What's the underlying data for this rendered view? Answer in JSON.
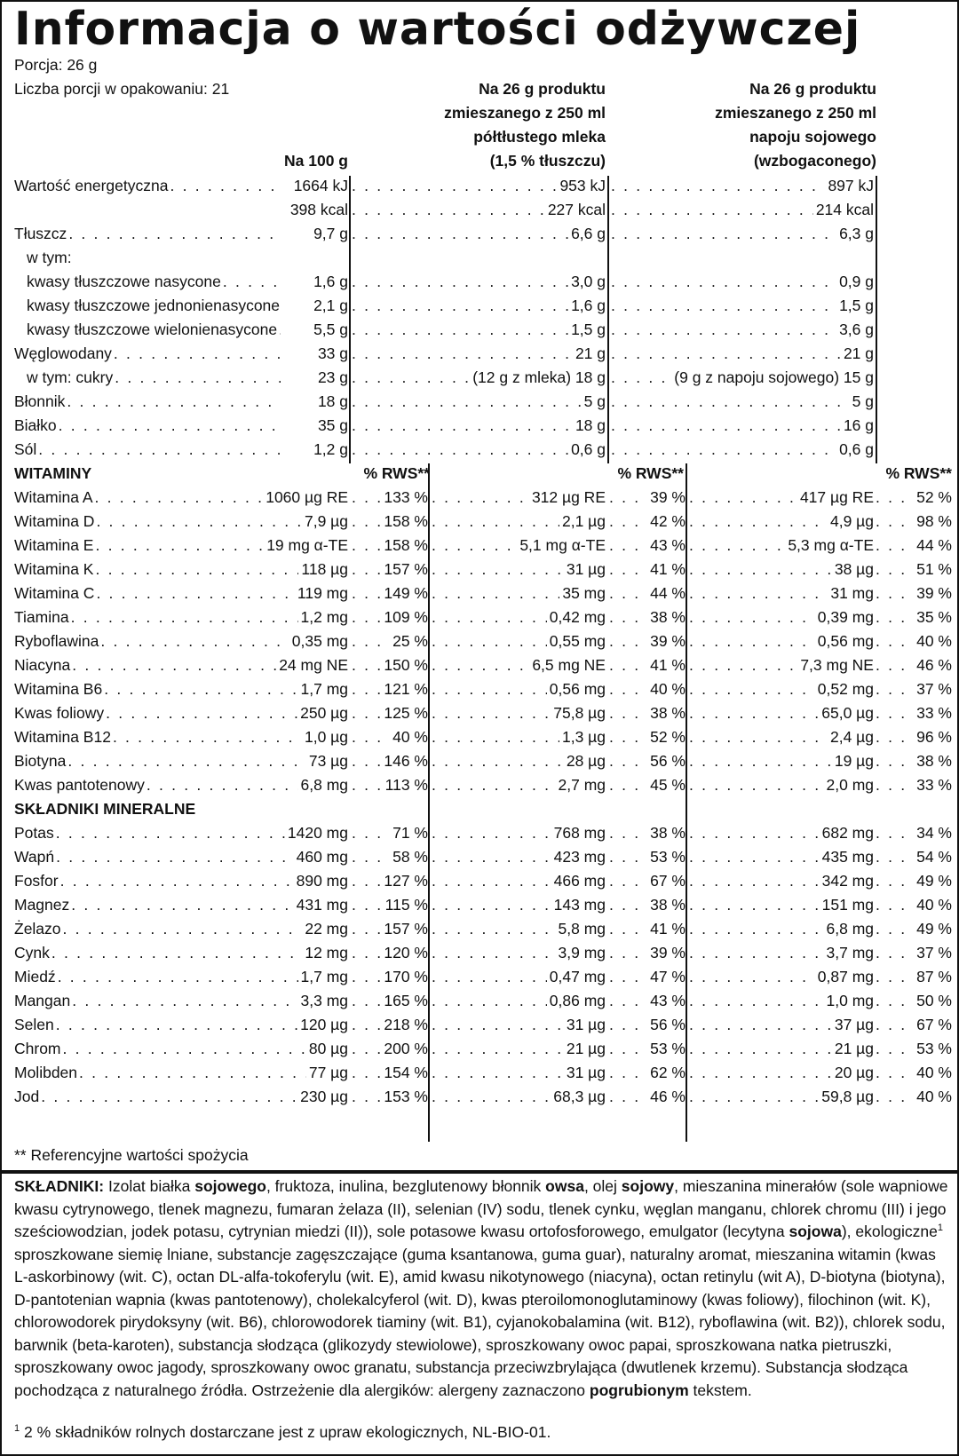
{
  "title": "Informacja o wartości odżywczej",
  "serving": "Porcja: 26 g",
  "servings_count": "Liczba porcji w opakowaniu: 21",
  "col_headers": {
    "per100": "Na 100 g",
    "milk": [
      "Na 26 g produktu",
      "zmieszanego z 250 ml",
      "półtłustego mleka",
      "(1,5 % tłuszczu)"
    ],
    "soy": [
      "Na 26 g produktu",
      "zmieszanego z 250 ml",
      "napoju sojowego",
      "(wzbogaconego)"
    ]
  },
  "nutrients": [
    {
      "label": "Wartość energetyczna",
      "indent": 0,
      "per100": "1664 kJ",
      "milk": "953 kJ",
      "soy": "897 kJ"
    },
    {
      "label": "",
      "indent": 0,
      "per100": "398 kcal",
      "milk": "227 kcal",
      "soy": "214 kcal"
    },
    {
      "label": "Tłuszcz",
      "indent": 0,
      "per100": "9,7 g",
      "milk": "6,6 g",
      "soy": "6,3 g"
    },
    {
      "label": "w tym:",
      "indent": 1,
      "per100": "",
      "milk": "",
      "soy": ""
    },
    {
      "label": "kwasy tłuszczowe nasycone",
      "indent": 1,
      "per100": "1,6 g",
      "milk": "3,0 g",
      "soy": "0,9 g"
    },
    {
      "label": "kwasy tłuszczowe jednonienasycone",
      "indent": 1,
      "per100": "2,1 g",
      "milk": "1,6 g",
      "soy": "1,5 g"
    },
    {
      "label": "kwasy tłuszczowe wielonienasycone",
      "indent": 1,
      "per100": "5,5 g",
      "milk": "1,5 g",
      "soy": "3,6 g"
    },
    {
      "label": "Węglowodany",
      "indent": 0,
      "per100": "33 g",
      "milk": "21 g",
      "soy": "21 g"
    },
    {
      "label": "w tym: cukry",
      "indent": 1,
      "per100": "23 g",
      "milk": "(12 g z mleka) 18 g",
      "soy": "(9 g z napoju sojowego) 15 g"
    },
    {
      "label": "Błonnik",
      "indent": 0,
      "per100": "18 g",
      "milk": "5 g",
      "soy": "5 g"
    },
    {
      "label": "Białko",
      "indent": 0,
      "per100": "35 g",
      "milk": "18 g",
      "soy": "16 g"
    },
    {
      "label": "Sól",
      "indent": 0,
      "per100": "1,2 g",
      "milk": "0,6 g",
      "soy": "0,6 g"
    }
  ],
  "vitamins_heading": "WITAMINY",
  "rws_header": "% RWS**",
  "vitamins": [
    {
      "label": "Witamina A",
      "v1": "1060 µg RE",
      "p1": "133 %",
      "v2": "312 µg RE",
      "p2": "39 %",
      "v3": "417 µg RE",
      "p3": "52 %"
    },
    {
      "label": "Witamina D",
      "v1": "7,9 µg",
      "p1": "158 %",
      "v2": "2,1 µg",
      "p2": "42 %",
      "v3": "4,9 µg",
      "p3": "98 %"
    },
    {
      "label": "Witamina E",
      "v1": "19 mg α-TE",
      "p1": "158 %",
      "v2": "5,1 mg α-TE",
      "p2": "43 %",
      "v3": "5,3 mg α-TE",
      "p3": "44 %"
    },
    {
      "label": "Witamina K",
      "v1": "118 µg",
      "p1": "157 %",
      "v2": "31 µg",
      "p2": "41 %",
      "v3": "38 µg",
      "p3": "51 %"
    },
    {
      "label": "Witamina C",
      "v1": "119 mg",
      "p1": "149 %",
      "v2": "35 mg",
      "p2": "44 %",
      "v3": "31 mg",
      "p3": "39 %"
    },
    {
      "label": "Tiamina",
      "v1": "1,2 mg",
      "p1": "109 %",
      "v2": "0,42 mg",
      "p2": "38 %",
      "v3": "0,39 mg",
      "p3": "35 %"
    },
    {
      "label": "Ryboflawina",
      "v1": "0,35 mg",
      "p1": "25 %",
      "v2": "0,55 mg",
      "p2": "39 %",
      "v3": "0,56 mg",
      "p3": "40 %"
    },
    {
      "label": "Niacyna",
      "v1": "24 mg NE",
      "p1": "150 %",
      "v2": "6,5 mg NE",
      "p2": "41 %",
      "v3": "7,3 mg NE",
      "p3": "46 %"
    },
    {
      "label": "Witamina B6",
      "v1": "1,7 mg",
      "p1": "121 %",
      "v2": "0,56 mg",
      "p2": "40 %",
      "v3": "0,52 mg",
      "p3": "37 %"
    },
    {
      "label": "Kwas foliowy",
      "v1": "250 µg",
      "p1": "125 %",
      "v2": "75,8 µg",
      "p2": "38 %",
      "v3": "65,0 µg",
      "p3": "33 %"
    },
    {
      "label": "Witamina B12",
      "v1": "1,0 µg",
      "p1": "40 %",
      "v2": "1,3 µg",
      "p2": "52 %",
      "v3": "2,4 µg",
      "p3": "96 %"
    },
    {
      "label": "Biotyna",
      "v1": "73 µg",
      "p1": "146 %",
      "v2": "28 µg",
      "p2": "56 %",
      "v3": "19 µg",
      "p3": "38 %"
    },
    {
      "label": "Kwas pantotenowy",
      "v1": "6,8 mg",
      "p1": "113 %",
      "v2": "2,7 mg",
      "p2": "45 %",
      "v3": "2,0 mg",
      "p3": "33 %"
    }
  ],
  "minerals_heading": "SKŁADNIKI MINERALNE",
  "minerals": [
    {
      "label": "Potas",
      "v1": "1420 mg",
      "p1": "71 %",
      "v2": "768 mg",
      "p2": "38 %",
      "v3": "682 mg",
      "p3": "34 %"
    },
    {
      "label": "Wapń",
      "v1": "460 mg",
      "p1": "58 %",
      "v2": "423 mg",
      "p2": "53 %",
      "v3": "435 mg",
      "p3": "54 %"
    },
    {
      "label": "Fosfor",
      "v1": "890 mg",
      "p1": "127 %",
      "v2": "466 mg",
      "p2": "67 %",
      "v3": "342 mg",
      "p3": "49 %"
    },
    {
      "label": "Magnez",
      "v1": "431 mg",
      "p1": "115 %",
      "v2": "143 mg",
      "p2": "38 %",
      "v3": "151 mg",
      "p3": "40 %"
    },
    {
      "label": "Żelazo",
      "v1": "22 mg",
      "p1": "157 %",
      "v2": "5,8 mg",
      "p2": "41 %",
      "v3": "6,8 mg",
      "p3": "49 %"
    },
    {
      "label": "Cynk",
      "v1": "12 mg",
      "p1": "120 %",
      "v2": "3,9 mg",
      "p2": "39 %",
      "v3": "3,7 mg",
      "p3": "37 %"
    },
    {
      "label": "Miedź",
      "v1": "1,7 mg",
      "p1": "170 %",
      "v2": "0,47 mg",
      "p2": "47 %",
      "v3": "0,87 mg",
      "p3": "87 %"
    },
    {
      "label": "Mangan",
      "v1": "3,3 mg",
      "p1": "165 %",
      "v2": "0,86 mg",
      "p2": "43 %",
      "v3": "1,0 mg",
      "p3": "50 %"
    },
    {
      "label": "Selen",
      "v1": "120 µg",
      "p1": "218 %",
      "v2": "31 µg",
      "p2": "56 %",
      "v3": "37 µg",
      "p3": "67 %"
    },
    {
      "label": "Chrom",
      "v1": "80 µg",
      "p1": "200 %",
      "v2": "21 µg",
      "p2": "53 %",
      "v3": "21 µg",
      "p3": "53 %"
    },
    {
      "label": "Molibden",
      "v1": "77 µg",
      "p1": "154 %",
      "v2": "31 µg",
      "p2": "62 %",
      "v3": "20 µg",
      "p3": "40 %"
    },
    {
      "label": "Jod",
      "v1": "230 µg",
      "p1": "153 %",
      "v2": "68,3 µg",
      "p2": "46 %",
      "v3": "59,8 µg",
      "p3": "40 %"
    }
  ],
  "rws_note": "** Referencyjne wartości spożycia",
  "ingredients": [
    {
      "t": "SKŁADNIKI:",
      "b": true
    },
    {
      "t": " Izolat białka "
    },
    {
      "t": "sojowego",
      "b": true
    },
    {
      "t": ", fruktoza, inulina, bezglutenowy błonnik "
    },
    {
      "t": "owsa",
      "b": true
    },
    {
      "t": ", olej "
    },
    {
      "t": "sojowy",
      "b": true
    },
    {
      "t": ", mieszanina minerałów (sole wapniowe kwasu cytrynowego, tlenek magnezu, fumaran żelaza (II), selenian (IV) sodu, tlenek cynku, węglan manganu, chlorek chromu (III) i jego sześciowodzian, jodek potasu, cytrynian miedzi (II)), sole potasowe kwasu ortofosforowego, emulgator (lecytyna "
    },
    {
      "t": "sojowa",
      "b": true
    },
    {
      "t": "), ekologiczne"
    },
    {
      "t": "1",
      "sup": true
    },
    {
      "t": " sproszkowane siemię lniane, substancje zagęszczające (guma ksantanowa, guma guar), naturalny aromat, mieszanina witamin (kwas L-askorbinowy (wit. C), octan DL-alfa-tokoferylu (wit. E), amid kwasu nikotynowego (niacyna), octan retinylu (wit A), D-biotyna (biotyna), D-pantotenian wapnia (kwas pantotenowy), cholekalcyferol (wit. D), kwas pteroilomonoglutaminowy (kwas foliowy), filochinon (wit. K), chlorowodorek pirydoksyny (wit. B6), chlorowodorek tiaminy (wit. B1), cyjanokobalamina (wit. B12), ryboflawina (wit. B2)), chlorek sodu, barwnik (beta-karoten), substancja słodząca (glikozydy stewiolowe), sproszkowany owoc papai, sproszkowana natka pietruszki, sproszkowany owoc jagody, sproszkowany owoc granatu, substancja przeciwzbrylająca (dwutlenek krzemu). Substancja słodząca pochodząca z naturalnego źródła. Ostrzeżenie dla alergików: alergeny zaznaczono "
    },
    {
      "t": "pogrubionym",
      "b": true
    },
    {
      "t": " tekstem."
    }
  ],
  "footnote_mark": "1",
  "footnote_text": " 2 % składników rolnych dostarczane jest z upraw ekologicznych, NL-BIO-01."
}
